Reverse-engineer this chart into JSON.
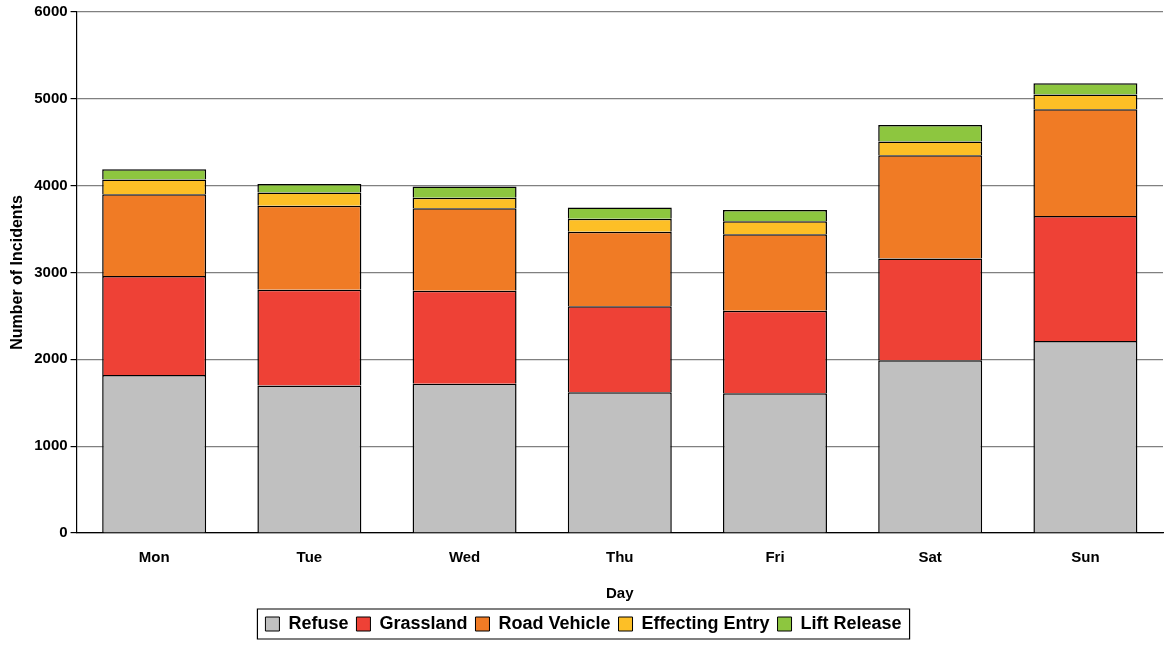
{
  "chart_data": {
    "type": "bar",
    "stacked": true,
    "xlabel": "Day",
    "ylabel": "Number of Incidents",
    "categories": [
      "Mon",
      "Tue",
      "Wed",
      "Thu",
      "Fri",
      "Sat",
      "Sun"
    ],
    "series": [
      {
        "name": "Refuse",
        "color": "#c0c0c0",
        "values": [
          1820,
          1700,
          1720,
          1620,
          1610,
          1990,
          2210
        ]
      },
      {
        "name": "Grassland",
        "color": "#ee4136",
        "values": [
          1140,
          1100,
          1070,
          990,
          950,
          1170,
          1440
        ]
      },
      {
        "name": "Road Vehicle",
        "color": "#f07b25",
        "values": [
          940,
          970,
          950,
          860,
          880,
          1190,
          1230
        ]
      },
      {
        "name": "Effecting Entry",
        "color": "#fdbf26",
        "values": [
          170,
          150,
          120,
          150,
          150,
          160,
          170
        ]
      },
      {
        "name": "Lift Release",
        "color": "#8dc63f",
        "values": [
          120,
          100,
          130,
          130,
          130,
          190,
          130
        ]
      }
    ],
    "ylim": [
      0,
      6000
    ],
    "yticks": [
      0,
      1000,
      2000,
      3000,
      4000,
      5000,
      6000
    ],
    "grid": "y",
    "legend": "bottom"
  }
}
